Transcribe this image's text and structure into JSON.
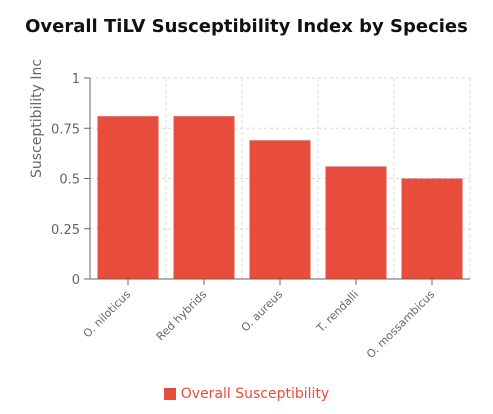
{
  "chart_data": {
    "type": "bar",
    "title": "Overall TiLV Susceptibility Index by Species",
    "xlabel": "",
    "ylabel": "Susceptibility Inc",
    "categories": [
      "O. niloticus",
      "Red hybrids",
      "O. aureus",
      "T. rendalli",
      "O. mossambicus"
    ],
    "series": [
      {
        "name": "Overall Susceptibility",
        "values": [
          0.81,
          0.81,
          0.69,
          0.56,
          0.5
        ],
        "color": "#e74c3c"
      }
    ],
    "ylim": [
      0,
      1
    ],
    "yticks": [
      0,
      0.25,
      0.5,
      0.75,
      1
    ],
    "ytick_labels": [
      "0",
      "0.25",
      "0.5",
      "0.75",
      "1"
    ],
    "grid": true,
    "legend_position": "bottom"
  }
}
